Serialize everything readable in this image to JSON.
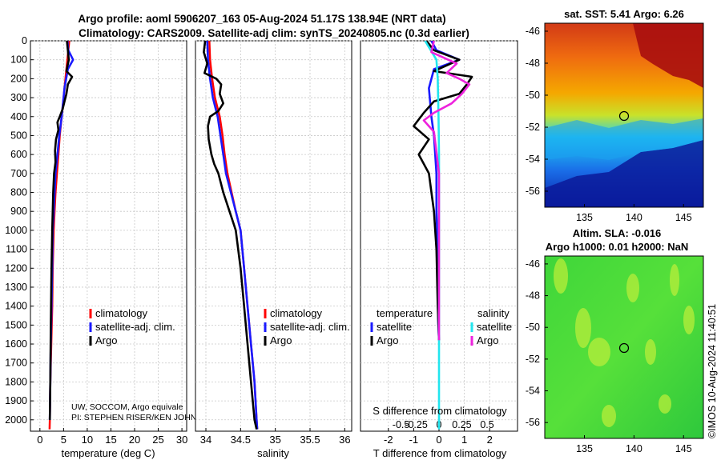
{
  "title": {
    "line1": "Argo profile: aoml 5906207_163 05-Aug-2024 51.17S 138.94E (NRT data)",
    "line2": "Climatology: CARS2009. Satellite-adj clim: synTS_20240805.nc (0.3d earlier)"
  },
  "watermark": "©IMOS 10-Aug-2024 11:40:51",
  "credits": {
    "line1": "UW, SOCCOM, Argo equivale",
    "line2": "PI: STEPHEN RISER/KEN JOHN"
  },
  "colors": {
    "climatology": "#ff0000",
    "satellite": "#1a1aff",
    "argo": "#000000",
    "sal_satellite": "#22e5ee",
    "sal_argo": "#ee22dd"
  },
  "chart_data": [
    {
      "type": "line",
      "id": "temperature-profile",
      "xlabel": "temperature (deg C)",
      "ylabel": "",
      "xlim": [
        -2,
        31
      ],
      "ylim": [
        2060,
        0
      ],
      "xticks": [
        0,
        5,
        10,
        15,
        20,
        25,
        30
      ],
      "xtick_labels": [
        "0",
        "5",
        "10",
        "15",
        "20",
        "25",
        "30"
      ],
      "yticks": [
        0,
        100,
        200,
        300,
        400,
        500,
        600,
        700,
        800,
        900,
        1000,
        1100,
        1200,
        1300,
        1400,
        1500,
        1600,
        1700,
        1800,
        1900,
        2000
      ],
      "grid": true,
      "legend": [
        "climatology",
        "satellite-adj. clim.",
        "Argo"
      ],
      "series": [
        {
          "name": "climatology",
          "color": "#ff0000",
          "x": [
            6.2,
            5.8,
            5.4,
            5.0,
            4.6,
            4.2,
            3.9,
            3.6,
            3.3,
            3.1,
            2.9,
            2.7,
            2.6,
            2.5,
            2.4,
            2.3,
            2.2,
            2.15,
            2.1,
            2.05
          ],
          "y": [
            0,
            100,
            200,
            300,
            400,
            500,
            600,
            700,
            800,
            900,
            1000,
            1200,
            1400,
            1500,
            1600,
            1700,
            1800,
            1900,
            2000,
            2050
          ]
        },
        {
          "name": "satellite-adj. clim.",
          "color": "#1a1aff",
          "x": [
            5.8,
            6.0,
            7.0,
            5.9,
            5.2,
            4.6,
            4.1,
            3.7,
            3.3,
            3.1,
            2.9,
            2.7,
            2.6,
            2.45,
            2.3,
            2.2,
            2.1
          ],
          "y": [
            0,
            50,
            100,
            150,
            250,
            400,
            500,
            600,
            700,
            800,
            900,
            1000,
            1200,
            1400,
            1600,
            1800,
            2000
          ]
        },
        {
          "name": "Argo",
          "color": "#000000",
          "x": [
            5.7,
            5.9,
            6.1,
            5.6,
            6.8,
            5.9,
            5.6,
            5.2,
            4.8,
            4.2,
            3.7,
            3.9,
            3.4,
            3.2,
            3.3,
            3.0,
            2.8,
            2.7,
            2.6,
            2.45,
            2.3,
            2.2,
            2.1
          ],
          "y": [
            0,
            50,
            100,
            160,
            190,
            230,
            280,
            320,
            360,
            400,
            430,
            470,
            520,
            580,
            640,
            700,
            800,
            900,
            1000,
            1200,
            1500,
            1800,
            2000
          ]
        }
      ]
    },
    {
      "type": "line",
      "id": "salinity-profile",
      "xlabel": "salinity",
      "ylabel": "",
      "xlim": [
        33.85,
        36.1
      ],
      "ylim": [
        2060,
        0
      ],
      "xticks": [
        34,
        34.5,
        35,
        35.5,
        36
      ],
      "xtick_labels": [
        "34",
        "34.5",
        "35",
        "35.5",
        "36"
      ],
      "grid": true,
      "legend": [
        "climatology",
        "satellite-adj. clim.",
        "Argo"
      ],
      "series": [
        {
          "name": "climatology",
          "color": "#ff0000",
          "x": [
            34.05,
            34.06,
            34.09,
            34.13,
            34.2,
            34.24,
            34.27,
            34.31,
            34.37,
            34.43,
            34.5,
            34.55,
            34.6,
            34.65,
            34.7,
            34.73,
            34.74
          ],
          "y": [
            0,
            100,
            200,
            300,
            400,
            500,
            600,
            700,
            800,
            900,
            1000,
            1200,
            1400,
            1600,
            1800,
            2000,
            2050
          ]
        },
        {
          "name": "satellite-adj. clim.",
          "color": "#1a1aff",
          "x": [
            34.02,
            34.03,
            34.06,
            34.1,
            34.17,
            34.21,
            34.25,
            34.29,
            34.36,
            34.43,
            34.5,
            34.55,
            34.6,
            34.65,
            34.7,
            34.73,
            34.74
          ],
          "y": [
            0,
            100,
            200,
            300,
            400,
            500,
            600,
            700,
            800,
            900,
            1000,
            1200,
            1400,
            1600,
            1800,
            2000,
            2050
          ]
        },
        {
          "name": "Argo",
          "color": "#000000",
          "x": [
            33.99,
            33.97,
            34.02,
            33.98,
            34.15,
            34.22,
            34.2,
            34.25,
            34.18,
            34.06,
            34.03,
            34.04,
            34.08,
            34.12,
            34.18,
            34.25,
            34.34,
            34.43,
            34.5,
            34.55,
            34.6,
            34.65,
            34.7,
            34.73
          ],
          "y": [
            0,
            60,
            120,
            170,
            200,
            230,
            280,
            330,
            370,
            400,
            450,
            520,
            600,
            650,
            700,
            800,
            900,
            1000,
            1200,
            1400,
            1600,
            1800,
            2000,
            2050
          ]
        }
      ]
    },
    {
      "type": "line",
      "id": "difference-profile",
      "xlabel": "T difference from climatology",
      "xlabel_top": "S difference from climatology",
      "ylabel": "",
      "xlim": [
        -3.1,
        3.1
      ],
      "ylim": [
        2060,
        0
      ],
      "xticks": [
        -2,
        -1,
        0,
        1,
        2
      ],
      "xtick_labels": [
        "-2",
        "-1",
        "0",
        "1",
        "2"
      ],
      "s_tick_labels": [
        "-0.5",
        "-0.25",
        "0",
        "0.25",
        "0.5"
      ],
      "grid": true,
      "legend_temperature_header": "temperature",
      "legend_salinity_header": "salinity",
      "legend": [
        "satellite",
        "Argo",
        "satellite",
        "Argo"
      ],
      "series": [
        {
          "name": "T satellite",
          "color": "#1a1aff",
          "x": [
            -0.3,
            -0.1,
            0.8,
            -0.2,
            -0.4,
            -0.3,
            -0.2,
            -0.1,
            -0.1,
            -0.05,
            -0.05,
            -0.03,
            0.0
          ],
          "y": [
            0,
            50,
            100,
            150,
            250,
            400,
            500,
            700,
            900,
            1100,
            1300,
            1500,
            1580
          ]
        },
        {
          "name": "T Argo",
          "color": "#000000",
          "x": [
            -0.5,
            -0.2,
            0.8,
            -0.2,
            1.3,
            1.1,
            0.8,
            -0.2,
            -0.6,
            -1.0,
            -0.4,
            -0.8,
            -0.4,
            -0.2,
            -0.1,
            -0.05,
            0.0
          ],
          "y": [
            0,
            50,
            100,
            160,
            190,
            230,
            280,
            320,
            380,
            450,
            520,
            600,
            700,
            900,
            1100,
            1400,
            1580
          ]
        },
        {
          "name": "S satellite",
          "color": "#22e5ee",
          "x": [
            -0.55,
            -0.1,
            -0.05,
            -0.02,
            0.0,
            0.0,
            0.0,
            0.0,
            0.0
          ],
          "y": [
            0,
            100,
            200,
            400,
            600,
            1000,
            1400,
            1800,
            2050
          ]
        },
        {
          "name": "S Argo",
          "color": "#ee22dd",
          "x": [
            -0.2,
            -0.3,
            0.7,
            0.3,
            0.8,
            1.2,
            0.9,
            0.5,
            -0.2,
            -0.6,
            -0.2,
            0.0,
            0.0
          ],
          "y": [
            0,
            60,
            120,
            170,
            200,
            230,
            280,
            330,
            380,
            420,
            480,
            700,
            1580
          ]
        }
      ]
    },
    {
      "type": "heatmap",
      "id": "sst-map",
      "title": "sat. SST: 5.41 Argo: 6.26",
      "xlim": [
        131,
        147
      ],
      "ylim": [
        -57,
        -45.5
      ],
      "xticks": [
        135,
        140,
        145
      ],
      "yticks": [
        -46,
        -48,
        -50,
        -52,
        -54,
        -56
      ],
      "xtick_labels": [
        "135",
        "140",
        "145"
      ],
      "ytick_labels": [
        "-46",
        "-48",
        "-50",
        "-52",
        "-54",
        "-56"
      ],
      "marker": {
        "lon": 138.94,
        "lat": -51.17
      }
    },
    {
      "type": "heatmap",
      "id": "sla-map",
      "title_line1": "Altim. SLA: -0.016",
      "title_line2": "Argo h1000: 0.01 h2000: NaN",
      "xlim": [
        131,
        147
      ],
      "ylim": [
        -57,
        -45.5
      ],
      "xticks": [
        135,
        140,
        145
      ],
      "yticks": [
        -46,
        -48,
        -50,
        -52,
        -54,
        -56
      ],
      "xtick_labels": [
        "135",
        "140",
        "145"
      ],
      "ytick_labels": [
        "-46",
        "-48",
        "-50",
        "-52",
        "-54",
        "-56"
      ],
      "marker": {
        "lon": 138.94,
        "lat": -51.17
      }
    }
  ]
}
